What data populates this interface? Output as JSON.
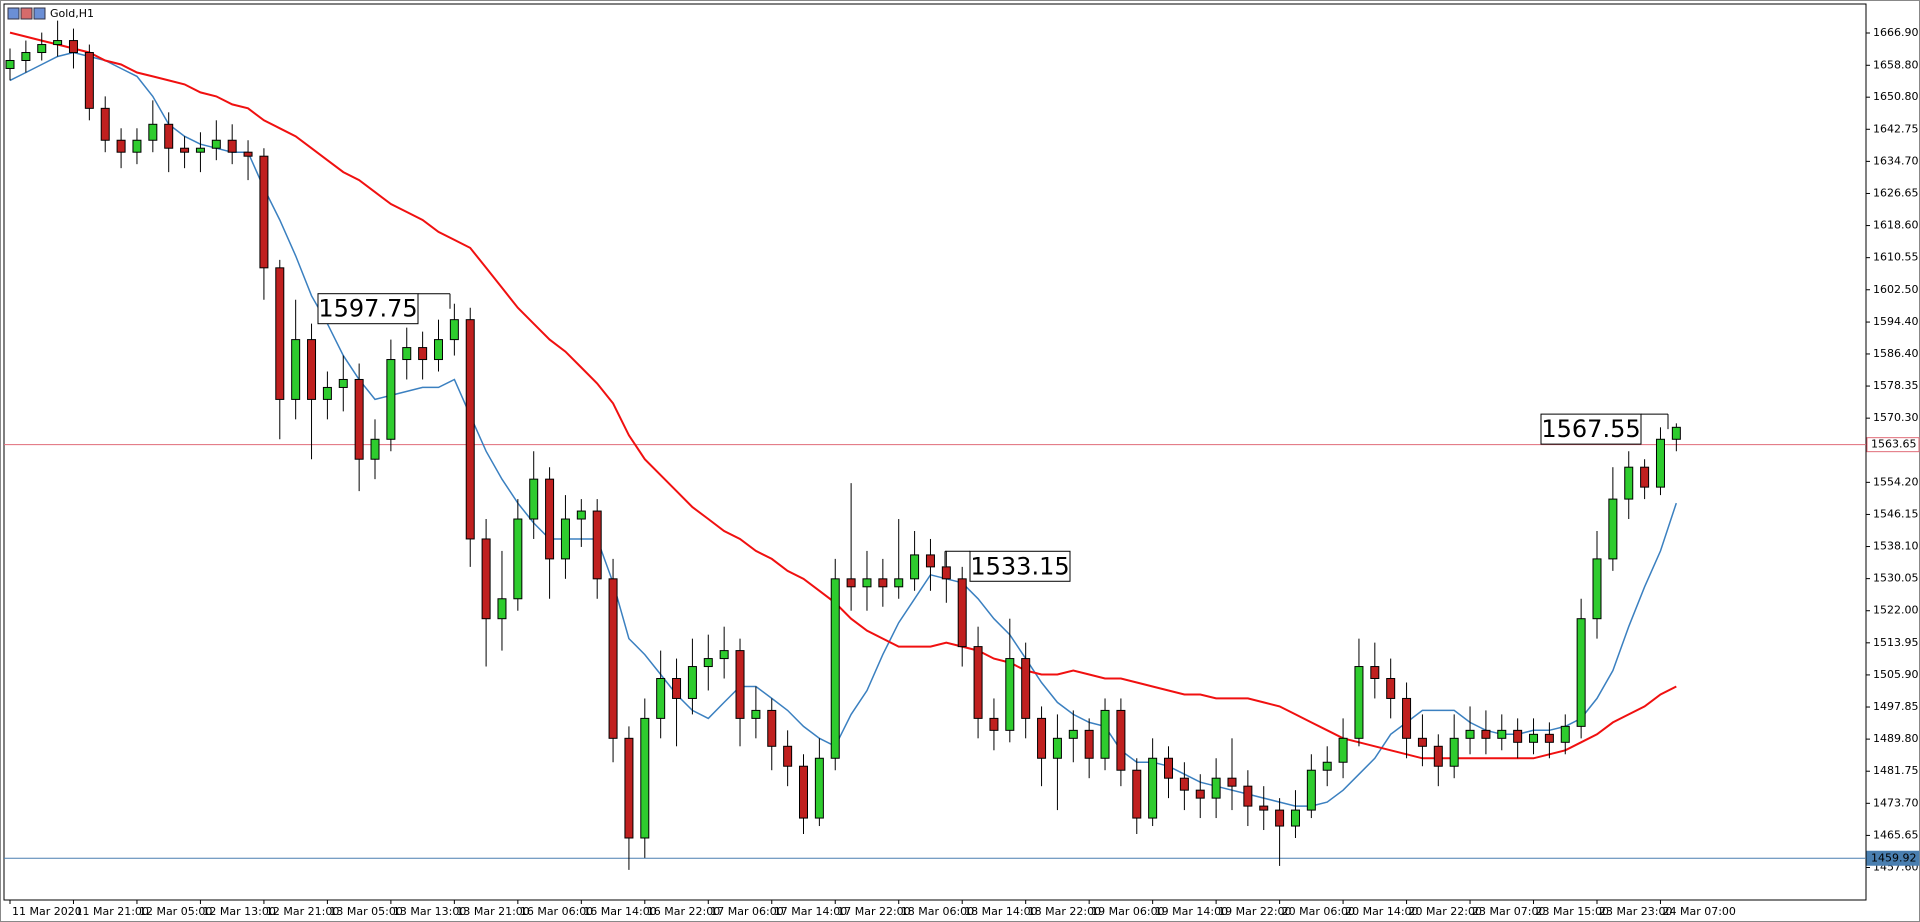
{
  "chart_data": {
    "type": "candlestick",
    "title": "Gold,H1",
    "categories": [
      "11 Mar 2020",
      null,
      null,
      null,
      "11 Mar 21:00",
      null,
      null,
      null,
      "12 Mar 05:00",
      null,
      null,
      null,
      "12 Mar 13:00",
      null,
      null,
      null,
      "12 Mar 21:00",
      null,
      null,
      null,
      "13 Mar 05:00",
      null,
      null,
      null,
      "13 Mar 13:00",
      null,
      null,
      null,
      "13 Mar 21:00",
      null,
      null,
      null,
      "16 Mar 06:00",
      null,
      null,
      null,
      "16 Mar 14:00",
      null,
      null,
      null,
      "16 Mar 22:00",
      null,
      null,
      null,
      "17 Mar 06:00",
      null,
      null,
      null,
      "17 Mar 14:00",
      null,
      null,
      null,
      "17 Mar 22:00",
      null,
      null,
      null,
      "18 Mar 06:00",
      null,
      null,
      null,
      "18 Mar 14:00",
      null,
      null,
      null,
      "18 Mar 22:00",
      null,
      null,
      null,
      "19 Mar 06:00",
      null,
      null,
      null,
      "19 Mar 14:00",
      null,
      null,
      null,
      "19 Mar 22:00",
      null,
      null,
      null,
      "20 Mar 06:00",
      null,
      null,
      null,
      "20 Mar 14:00",
      null,
      null,
      null,
      "20 Mar 22:00",
      null,
      null,
      null,
      "23 Mar 07:00",
      null,
      null,
      null,
      "23 Mar 15:00",
      null,
      null,
      null,
      "23 Mar 23:00",
      null,
      null,
      null,
      "24 Mar 07:00",
      null
    ],
    "ohlc": {
      "up_color": "#2ecc2e",
      "down_color": "#c0201f",
      "open": [
        1658,
        1660,
        1662,
        1664,
        1665,
        1662,
        1648,
        1640,
        1637,
        1640,
        1644,
        1638,
        1637,
        1638,
        1640,
        1637,
        1636,
        1608,
        1575,
        1590,
        1575,
        1578,
        1580,
        1560,
        1565,
        1585,
        1588,
        1585,
        1590,
        1595,
        1540,
        1520,
        1525,
        1545,
        1555,
        1535,
        1545,
        1547,
        1530,
        1490,
        1465,
        1495,
        1505,
        1500,
        1508,
        1510,
        1512,
        1495,
        1497,
        1488,
        1483,
        1470,
        1485,
        1530,
        1528,
        1530,
        1528,
        1530,
        1536,
        1533,
        1530,
        1513,
        1495,
        1492,
        1510,
        1495,
        1485,
        1490,
        1492,
        1485,
        1497,
        1482,
        1470,
        1485,
        1480,
        1477,
        1475,
        1480,
        1478,
        1473,
        1472,
        1468,
        1472,
        1482,
        1484,
        1490,
        1508,
        1505,
        1500,
        1490,
        1488,
        1483,
        1490,
        1492,
        1490,
        1492,
        1489,
        1491,
        1489,
        1493,
        1520,
        1535,
        1550,
        1558,
        1553,
        1565
      ],
      "high": [
        1663,
        1665,
        1667,
        1670,
        1668,
        1664,
        1651,
        1643,
        1643,
        1650,
        1647,
        1641,
        1642,
        1645,
        1644,
        1640,
        1638,
        1610,
        1600,
        1594,
        1582,
        1586,
        1584,
        1570,
        1590,
        1593,
        1592,
        1595,
        1599,
        1598,
        1545,
        1537,
        1550,
        1562,
        1558,
        1551,
        1550,
        1550,
        1535,
        1493,
        1500,
        1512,
        1510,
        1515,
        1516,
        1518,
        1515,
        1503,
        1500,
        1492,
        1486,
        1490,
        1535,
        1554,
        1537,
        1535,
        1545,
        1542,
        1540,
        1537,
        1533,
        1518,
        1500,
        1520,
        1514,
        1498,
        1496,
        1497,
        1495,
        1500,
        1500,
        1485,
        1490,
        1488,
        1484,
        1481,
        1485,
        1490,
        1482,
        1478,
        1475,
        1477,
        1486,
        1488,
        1495,
        1515,
        1514,
        1510,
        1504,
        1496,
        1491,
        1496,
        1498,
        1497,
        1496,
        1495,
        1495,
        1494,
        1496,
        1525,
        1542,
        1558,
        1562,
        1560,
        1568,
        1569
      ],
      "low": [
        1655,
        1657,
        1660,
        1661,
        1658,
        1645,
        1637,
        1633,
        1634,
        1637,
        1632,
        1633,
        1632,
        1635,
        1634,
        1630,
        1600,
        1565,
        1570,
        1560,
        1570,
        1572,
        1552,
        1555,
        1562,
        1580,
        1580,
        1582,
        1586,
        1533,
        1508,
        1512,
        1522,
        1540,
        1525,
        1530,
        1538,
        1525,
        1484,
        1457,
        1460,
        1490,
        1488,
        1496,
        1502,
        1505,
        1488,
        1490,
        1482,
        1478,
        1466,
        1468,
        1482,
        1522,
        1522,
        1523,
        1525,
        1527,
        1527,
        1524,
        1508,
        1490,
        1487,
        1489,
        1490,
        1478,
        1472,
        1484,
        1480,
        1482,
        1478,
        1466,
        1468,
        1475,
        1472,
        1470,
        1470,
        1472,
        1468,
        1467,
        1458,
        1465,
        1470,
        1478,
        1480,
        1488,
        1500,
        1495,
        1485,
        1483,
        1478,
        1480,
        1486,
        1486,
        1487,
        1485,
        1486,
        1485,
        1486,
        1490,
        1515,
        1532,
        1545,
        1550,
        1551,
        1562
      ],
      "close": [
        1660,
        1662,
        1664,
        1665,
        1662,
        1648,
        1640,
        1637,
        1640,
        1644,
        1638,
        1637,
        1638,
        1640,
        1637,
        1636,
        1608,
        1575,
        1590,
        1575,
        1578,
        1580,
        1560,
        1565,
        1585,
        1588,
        1585,
        1590,
        1595,
        1540,
        1520,
        1525,
        1545,
        1555,
        1535,
        1545,
        1547,
        1530,
        1490,
        1465,
        1495,
        1505,
        1500,
        1508,
        1510,
        1512,
        1495,
        1497,
        1488,
        1483,
        1470,
        1485,
        1530,
        1528,
        1530,
        1528,
        1530,
        1536,
        1533,
        1530,
        1513,
        1495,
        1492,
        1510,
        1495,
        1485,
        1490,
        1492,
        1485,
        1497,
        1482,
        1470,
        1485,
        1480,
        1477,
        1475,
        1480,
        1478,
        1473,
        1472,
        1468,
        1472,
        1482,
        1484,
        1490,
        1508,
        1505,
        1500,
        1490,
        1488,
        1483,
        1490,
        1492,
        1490,
        1492,
        1489,
        1491,
        1489,
        1493,
        1520,
        1535,
        1550,
        1558,
        1553,
        1565,
        1568
      ]
    },
    "moving_averages": [
      {
        "color": "#3b80c0",
        "values": [
          1655,
          1657,
          1659,
          1661,
          1662,
          1661,
          1660,
          1658,
          1656,
          1651,
          1644,
          1641,
          1639,
          1638,
          1637,
          1637,
          1628,
          1620,
          1611,
          1601,
          1594,
          1586,
          1580,
          1575,
          1576,
          1577,
          1578,
          1578,
          1580,
          1571,
          1562,
          1555,
          1549,
          1544,
          1540,
          1540,
          1540,
          1540,
          1529,
          1515,
          1511,
          1506,
          1501,
          1497,
          1495,
          1499,
          1503,
          1503,
          1500,
          1497,
          1493,
          1490,
          1488,
          1496,
          1502,
          1511,
          1519,
          1525,
          1531,
          1530,
          1529,
          1525,
          1520,
          1516,
          1510,
          1504,
          1499,
          1496,
          1494,
          1493,
          1487,
          1484,
          1484,
          1483,
          1481,
          1479,
          1478,
          1477,
          1476,
          1475,
          1474,
          1473,
          1473,
          1474,
          1477,
          1481,
          1485,
          1491,
          1494,
          1497,
          1497,
          1497,
          1494,
          1492,
          1491,
          1491,
          1492,
          1492,
          1493,
          1495,
          1500,
          1507,
          1518,
          1528,
          1537,
          1549
        ]
      },
      {
        "color": "#f01010",
        "values": [
          1667,
          1666,
          1665,
          1664,
          1663,
          1662,
          1660,
          1659,
          1657,
          1656,
          1655,
          1654,
          1652,
          1651,
          1649,
          1648,
          1645,
          1643,
          1641,
          1638,
          1635,
          1632,
          1630,
          1627,
          1624,
          1622,
          1620,
          1617,
          1615,
          1613,
          1608,
          1603,
          1598,
          1594,
          1590,
          1587,
          1583,
          1579,
          1574,
          1566,
          1560,
          1556,
          1552,
          1548,
          1545,
          1542,
          1540,
          1537,
          1535,
          1532,
          1530,
          1527,
          1524,
          1520,
          1517,
          1515,
          1513,
          1513,
          1513,
          1514,
          1513,
          1512,
          1510,
          1509,
          1507,
          1506,
          1506,
          1507,
          1506,
          1505,
          1505,
          1504,
          1503,
          1502,
          1501,
          1501,
          1500,
          1500,
          1500,
          1499,
          1498,
          1496,
          1494,
          1492,
          1490,
          1489,
          1488,
          1487,
          1486,
          1485,
          1485,
          1485,
          1485,
          1485,
          1485,
          1485,
          1485,
          1486,
          1487,
          1489,
          1491,
          1494,
          1496,
          1498,
          1501,
          1503
        ]
      }
    ],
    "ylim": [
      1449.45,
      1674.17
    ],
    "yticks": [
      {
        "value": 1666.9,
        "label": "1666.90"
      },
      {
        "value": 1658.8,
        "label": "1658.80"
      },
      {
        "value": 1650.8,
        "label": "1650.80"
      },
      1642.75,
      {
        "value": 1634.7,
        "label": "1634.70"
      },
      1626.65,
      {
        "value": 1618.6,
        "label": "1618.60"
      },
      1610.55,
      {
        "value": 1602.5,
        "label": "1602.50"
      },
      {
        "value": 1594.4,
        "label": "1594.40"
      },
      {
        "value": 1586.4,
        "label": "1586.40"
      },
      1578.35,
      {
        "value": 1570.3,
        "label": "1570.30"
      },
      {
        "value": 1554.2,
        "label": "1554.20"
      },
      1546.15,
      {
        "value": 1538.1,
        "label": "1538.10"
      },
      1530.05,
      {
        "value": 1522,
        "label": "1522.00"
      },
      1513.95,
      {
        "value": 1505.9,
        "label": "1505.90"
      },
      1497.85,
      {
        "value": 1489.8,
        "label": "1489.80"
      },
      1481.75,
      {
        "value": 1473.7,
        "label": "1473.70"
      },
      1465.65,
      {
        "value": 1457.6,
        "label": "1457.60"
      }
    ],
    "price_lines": [
      {
        "value": 1563.65,
        "color": "#e06c78"
      },
      {
        "value": 1459.92,
        "color": "#4a7fb0"
      }
    ],
    "annotations": [
      1597.75,
      1533.15,
      1567.55
    ]
  }
}
